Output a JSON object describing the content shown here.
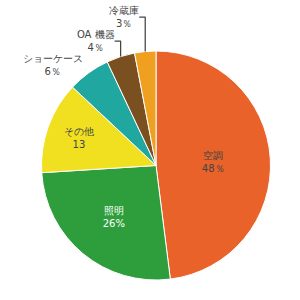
{
  "chart_data": {
    "type": "pie",
    "categories": [
      "空調",
      "照明",
      "その他",
      "ショーケース",
      "OA 機器",
      "冷蔵庫"
    ],
    "values": [
      48,
      26,
      13,
      6,
      4,
      3
    ],
    "value_labels": [
      "48％",
      "26%",
      "13",
      "6％",
      "4％",
      "3％"
    ],
    "colors": [
      "#E8622A",
      "#2E9E3C",
      "#F0E020",
      "#20A8A0",
      "#7B5020",
      "#F0A020"
    ],
    "data_labels": true
  }
}
